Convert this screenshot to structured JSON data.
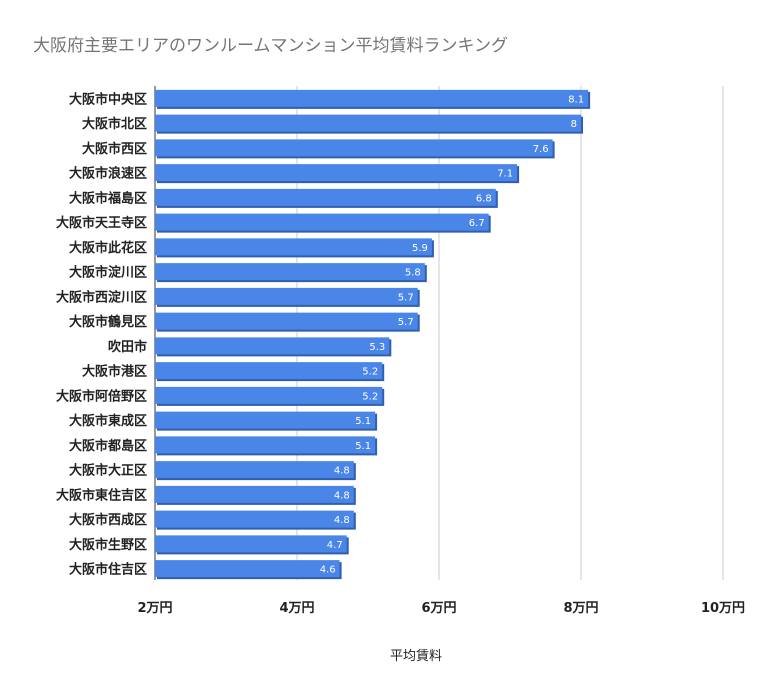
{
  "chart_data": {
    "type": "bar",
    "orientation": "horizontal",
    "title": "大阪府主要エリアのワンルームマンション平均賃料ランキング",
    "xlabel": "平均賃料",
    "ylabel": "",
    "categories": [
      "大阪市中央区",
      "大阪市北区",
      "大阪市西区",
      "大阪市浪速区",
      "大阪市福島区",
      "大阪市天王寺区",
      "大阪市此花区",
      "大阪市淀川区",
      "大阪市西淀川区",
      "大阪市鶴見区",
      "吹田市",
      "大阪市港区",
      "大阪市阿倍野区",
      "大阪市東成区",
      "大阪市都島区",
      "大阪市大正区",
      "大阪市東住吉区",
      "大阪市西成区",
      "大阪市生野区",
      "大阪市住吉区"
    ],
    "values": [
      8.1,
      8,
      7.6,
      7.1,
      6.8,
      6.7,
      5.9,
      5.8,
      5.7,
      5.7,
      5.3,
      5.2,
      5.2,
      5.1,
      5.1,
      4.8,
      4.8,
      4.8,
      4.7,
      4.6
    ],
    "data_labels": [
      "8.1",
      "8",
      "7.6",
      "7.1",
      "6.8",
      "6.7",
      "5.9",
      "5.8",
      "5.7",
      "5.7",
      "5.3",
      "5.2",
      "5.2",
      "5.1",
      "5.1",
      "4.8",
      "4.8",
      "4.8",
      "4.7",
      "4.6"
    ],
    "xlim": [
      2,
      10
    ],
    "xticks": [
      2,
      4,
      6,
      8,
      10
    ],
    "xtick_labels": [
      "2万円",
      "4万円",
      "6万円",
      "8万円",
      "10万円"
    ],
    "grid": true,
    "legend": "none",
    "colors": {
      "bar": "#4a86e8",
      "bar_shadow": "#2f5fae",
      "grid": "#cccccc",
      "axis": "#333333"
    }
  }
}
